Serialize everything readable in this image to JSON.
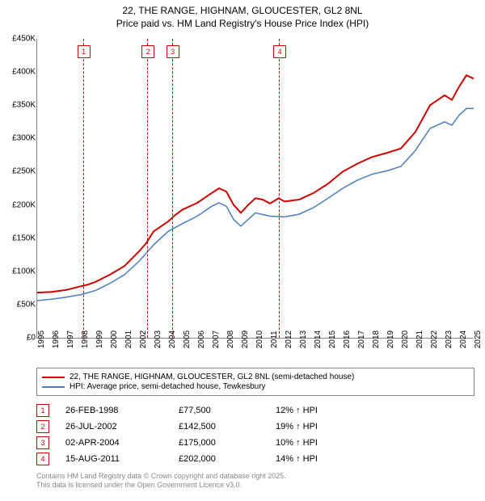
{
  "title": {
    "line1": "22, THE RANGE, HIGHNAM, GLOUCESTER, GL2 8NL",
    "line2": "Price paid vs. HM Land Registry's House Price Index (HPI)",
    "fontsize": 12
  },
  "chart": {
    "type": "line",
    "xlim": [
      1995,
      2025
    ],
    "ylim": [
      0,
      450000
    ],
    "ytick_step": 50000,
    "yticks": [
      "£0",
      "£50K",
      "£100K",
      "£150K",
      "£200K",
      "£250K",
      "£300K",
      "£350K",
      "£400K",
      "£450K"
    ],
    "xticks": [
      1995,
      1996,
      1997,
      1998,
      1999,
      2000,
      2001,
      2002,
      2003,
      2004,
      2005,
      2006,
      2007,
      2008,
      2009,
      2010,
      2011,
      2012,
      2013,
      2014,
      2015,
      2016,
      2017,
      2018,
      2019,
      2020,
      2021,
      2022,
      2023,
      2024,
      2025
    ],
    "label_fontsize": 10,
    "background_color": "#ffffff",
    "series": [
      {
        "name": "price_paid",
        "color": "#cc0000",
        "width": 2,
        "points": [
          [
            1995,
            68000
          ],
          [
            1996,
            69000
          ],
          [
            1997,
            72000
          ],
          [
            1998,
            77500
          ],
          [
            1998.5,
            80000
          ],
          [
            1999,
            84000
          ],
          [
            2000,
            95000
          ],
          [
            2001,
            108000
          ],
          [
            2002,
            130000
          ],
          [
            2002.5,
            142500
          ],
          [
            2003,
            160000
          ],
          [
            2004,
            175000
          ],
          [
            2004.5,
            185000
          ],
          [
            2005,
            193000
          ],
          [
            2006,
            203000
          ],
          [
            2007,
            218000
          ],
          [
            2007.5,
            225000
          ],
          [
            2008,
            220000
          ],
          [
            2008.5,
            200000
          ],
          [
            2009,
            188000
          ],
          [
            2009.5,
            200000
          ],
          [
            2010,
            210000
          ],
          [
            2010.5,
            208000
          ],
          [
            2011,
            202000
          ],
          [
            2011.6,
            210000
          ],
          [
            2012,
            205000
          ],
          [
            2013,
            208000
          ],
          [
            2014,
            218000
          ],
          [
            2015,
            232000
          ],
          [
            2016,
            250000
          ],
          [
            2017,
            262000
          ],
          [
            2018,
            272000
          ],
          [
            2019,
            278000
          ],
          [
            2020,
            285000
          ],
          [
            2021,
            310000
          ],
          [
            2022,
            350000
          ],
          [
            2023,
            365000
          ],
          [
            2023.5,
            358000
          ],
          [
            2024,
            378000
          ],
          [
            2024.5,
            395000
          ],
          [
            2025,
            390000
          ]
        ]
      },
      {
        "name": "hpi",
        "color": "#4a7ebb",
        "width": 1.5,
        "points": [
          [
            1995,
            56000
          ],
          [
            1996,
            58000
          ],
          [
            1997,
            61000
          ],
          [
            1998,
            65000
          ],
          [
            1999,
            71000
          ],
          [
            2000,
            82000
          ],
          [
            2001,
            95000
          ],
          [
            2002,
            115000
          ],
          [
            2003,
            140000
          ],
          [
            2004,
            160000
          ],
          [
            2005,
            172000
          ],
          [
            2006,
            183000
          ],
          [
            2007,
            198000
          ],
          [
            2007.5,
            203000
          ],
          [
            2008,
            198000
          ],
          [
            2008.5,
            178000
          ],
          [
            2009,
            168000
          ],
          [
            2009.5,
            178000
          ],
          [
            2010,
            188000
          ],
          [
            2011,
            183000
          ],
          [
            2012,
            182000
          ],
          [
            2013,
            186000
          ],
          [
            2014,
            196000
          ],
          [
            2015,
            210000
          ],
          [
            2016,
            225000
          ],
          [
            2017,
            237000
          ],
          [
            2018,
            246000
          ],
          [
            2019,
            251000
          ],
          [
            2020,
            258000
          ],
          [
            2021,
            282000
          ],
          [
            2022,
            315000
          ],
          [
            2023,
            325000
          ],
          [
            2023.5,
            320000
          ],
          [
            2024,
            335000
          ],
          [
            2024.5,
            345000
          ],
          [
            2025,
            345000
          ]
        ]
      }
    ],
    "markers": [
      {
        "n": "1",
        "x": 1998.15
      },
      {
        "n": "2",
        "x": 2002.57
      },
      {
        "n": "3",
        "x": 2004.26
      },
      {
        "n": "4",
        "x": 2011.62
      }
    ]
  },
  "legend": {
    "items": [
      {
        "color": "#cc0000",
        "label": "22, THE RANGE, HIGHNAM, GLOUCESTER, GL2 8NL (semi-detached house)"
      },
      {
        "color": "#4a7ebb",
        "label": "HPI: Average price, semi-detached house, Tewkesbury"
      }
    ]
  },
  "table": {
    "rows": [
      {
        "n": "1",
        "date": "26-FEB-1998",
        "price": "£77,500",
        "hpi": "12% ↑ HPI"
      },
      {
        "n": "2",
        "date": "26-JUL-2002",
        "price": "£142,500",
        "hpi": "19% ↑ HPI"
      },
      {
        "n": "3",
        "date": "02-APR-2004",
        "price": "£175,000",
        "hpi": "10% ↑ HPI"
      },
      {
        "n": "4",
        "date": "15-AUG-2011",
        "price": "£202,000",
        "hpi": "14% ↑ HPI"
      }
    ]
  },
  "footer": {
    "line1": "Contains HM Land Registry data © Crown copyright and database right 2025.",
    "line2": "This data is licensed under the Open Government Licence v3.0."
  }
}
